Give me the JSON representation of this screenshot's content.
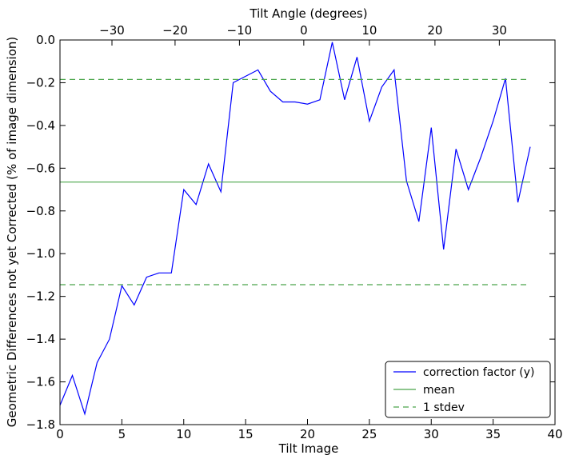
{
  "chart_data": {
    "type": "line",
    "xlabel": "Tilt Image",
    "ylabel": "Geometric Differences not yet Corrected (% of image dimension)",
    "xlim": [
      0,
      40
    ],
    "ylim": [
      -1.8,
      0.0
    ],
    "x_ticks": [
      "0",
      "5",
      "10",
      "15",
      "20",
      "25",
      "30",
      "35",
      "40"
    ],
    "y_ticks": [
      "0.0",
      "−0.2",
      "−0.4",
      "−0.6",
      "−0.8",
      "−1.0",
      "−1.2",
      "−1.4",
      "−1.6",
      "−1.8"
    ],
    "x2label": "Tilt Angle (degrees)",
    "x2_ticks": [
      {
        "label": "−30",
        "image": 4.2
      },
      {
        "label": "−20",
        "image": 9.3
      },
      {
        "label": "−10",
        "image": 14.5
      },
      {
        "label": "0",
        "image": 19.7
      },
      {
        "label": "10",
        "image": 25.0
      },
      {
        "label": "20",
        "image": 30.3
      },
      {
        "label": "30",
        "image": 35.5
      }
    ],
    "series": [
      {
        "name": "correction factor (y)",
        "color": "#0000ff",
        "style": "solid",
        "x": [
          0,
          1,
          2,
          3,
          4,
          5,
          6,
          7,
          8,
          9,
          10,
          11,
          12,
          13,
          14,
          15,
          16,
          17,
          18,
          19,
          20,
          21,
          22,
          23,
          24,
          25,
          26,
          27,
          28,
          29,
          30,
          31,
          32,
          33,
          34,
          35,
          36,
          37,
          38
        ],
        "y": [
          -1.71,
          -1.57,
          -1.75,
          -1.51,
          -1.4,
          -1.15,
          -1.24,
          -1.11,
          -1.09,
          -1.09,
          -0.7,
          -0.77,
          -0.58,
          -0.71,
          -0.2,
          -0.17,
          -0.14,
          -0.24,
          -0.29,
          -0.29,
          -0.3,
          -0.28,
          -0.01,
          -0.28,
          -0.08,
          -0.38,
          -0.22,
          -0.14,
          -0.66,
          -0.85,
          -0.41,
          -0.98,
          -0.51,
          -0.7,
          -0.55,
          -0.38,
          -0.18,
          -0.76,
          -0.5
        ]
      },
      {
        "name": "mean",
        "color": "#4aa54a",
        "style": "solid",
        "x": [
          0,
          38
        ],
        "y": [
          -0.665,
          -0.665
        ]
      },
      {
        "name": "1 stdev",
        "color": "#4aa54a",
        "style": "dashed",
        "x": [
          0,
          38
        ],
        "y": [
          -0.185,
          -0.185
        ]
      },
      {
        "name": "",
        "color": "#4aa54a",
        "style": "dashed",
        "x": [
          0,
          38
        ],
        "y": [
          -1.145,
          -1.145
        ]
      }
    ],
    "legend": {
      "placement": "lower-right",
      "entries": [
        {
          "label": "correction factor (y)",
          "color": "#0000ff",
          "style": "solid"
        },
        {
          "label": "mean",
          "color": "#4aa54a",
          "style": "solid"
        },
        {
          "label": "1 stdev",
          "color": "#4aa54a",
          "style": "dashed"
        }
      ]
    },
    "grid": false
  }
}
